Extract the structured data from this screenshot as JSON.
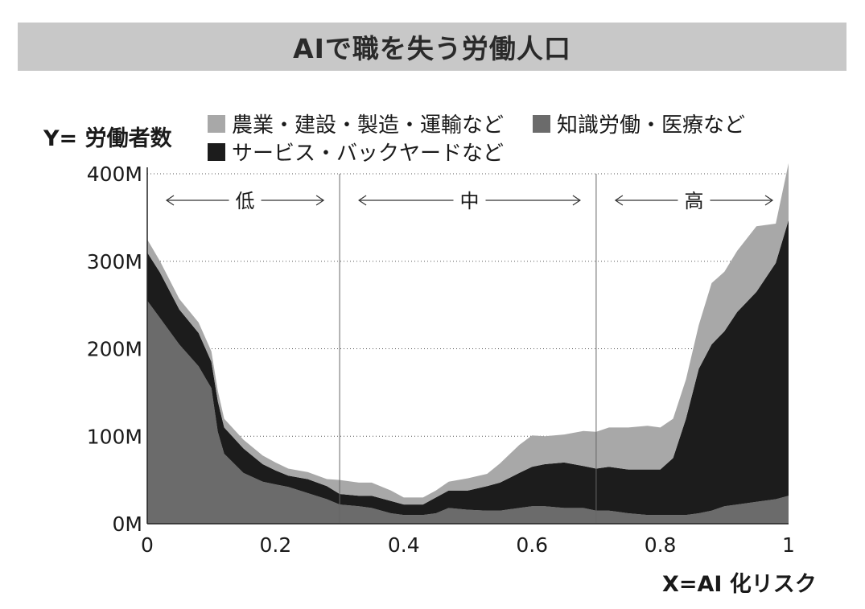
{
  "title": "AIで職を失う労働人口",
  "legend": [
    {
      "label": "農業・建設・製造・運輸など",
      "color": "#a8a8a8"
    },
    {
      "label": "知識労働・医療など",
      "color": "#6b6b6b"
    },
    {
      "label": "サービス・バックヤードなど",
      "color": "#1c1c1c"
    }
  ],
  "chart_data": {
    "type": "area",
    "stacked": true,
    "title": "AIで職を失う労働人口",
    "xlabel": "X=AI 化リスク",
    "ylabel": "Y= 労働者数",
    "xlim": [
      0,
      1
    ],
    "ylim": [
      0,
      400
    ],
    "x_ticks": [
      "0",
      "0.2",
      "0.4",
      "0.6",
      "0.8",
      "1"
    ],
    "y_ticks": [
      "0M",
      "100M",
      "200M",
      "300M",
      "400M"
    ],
    "grid": "horizontal dotted",
    "zones": [
      {
        "label": "低",
        "from": 0,
        "to": 0.3
      },
      {
        "label": "中",
        "from": 0.3,
        "to": 0.7
      },
      {
        "label": "高",
        "from": 0.7,
        "to": 1
      }
    ],
    "x": [
      0,
      0.02,
      0.05,
      0.08,
      0.1,
      0.11,
      0.12,
      0.15,
      0.18,
      0.2,
      0.22,
      0.25,
      0.28,
      0.3,
      0.33,
      0.35,
      0.38,
      0.4,
      0.43,
      0.45,
      0.47,
      0.5,
      0.53,
      0.55,
      0.58,
      0.6,
      0.62,
      0.65,
      0.68,
      0.7,
      0.72,
      0.75,
      0.78,
      0.8,
      0.82,
      0.84,
      0.86,
      0.88,
      0.9,
      0.92,
      0.95,
      0.98,
      1
    ],
    "series": [
      {
        "name": "知識労働・医療など",
        "color": "#6b6b6b",
        "values": [
          255,
          235,
          205,
          180,
          155,
          105,
          80,
          58,
          48,
          45,
          42,
          35,
          28,
          22,
          20,
          18,
          12,
          10,
          10,
          12,
          18,
          16,
          15,
          15,
          18,
          20,
          20,
          18,
          18,
          15,
          15,
          12,
          10,
          10,
          10,
          10,
          12,
          15,
          20,
          22,
          25,
          28,
          32
        ]
      },
      {
        "name": "サービス・バックヤードなど",
        "color": "#1c1c1c",
        "values": [
          55,
          52,
          40,
          38,
          30,
          35,
          30,
          28,
          20,
          16,
          13,
          16,
          15,
          12,
          12,
          14,
          14,
          12,
          12,
          18,
          20,
          22,
          28,
          32,
          40,
          45,
          48,
          52,
          48,
          48,
          50,
          50,
          52,
          52,
          65,
          110,
          165,
          190,
          200,
          220,
          240,
          270,
          315
        ]
      },
      {
        "name": "農業・建設・製造・運輸など",
        "color": "#a8a8a8",
        "values": [
          15,
          13,
          12,
          12,
          12,
          12,
          10,
          10,
          10,
          9,
          8,
          8,
          8,
          16,
          15,
          15,
          12,
          8,
          8,
          8,
          10,
          14,
          14,
          22,
          32,
          36,
          32,
          32,
          40,
          42,
          45,
          48,
          50,
          48,
          45,
          45,
          50,
          70,
          68,
          70,
          75,
          45,
          65
        ]
      }
    ]
  }
}
